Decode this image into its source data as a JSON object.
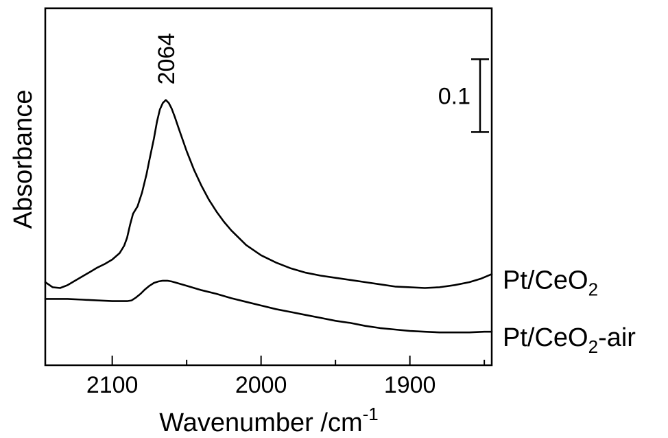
{
  "chart_data": {
    "type": "line",
    "title": "",
    "xlabel": "Wavenumber /cm",
    "xlabel_superscript": "-1",
    "ylabel": "Absorbance",
    "xlim": [
      2145,
      1845
    ],
    "x_reversed": true,
    "ylim": [
      -0.03,
      0.46
    ],
    "y_ticks_shown": false,
    "grid": false,
    "legend": "labels at right end of each curve",
    "x_ticks": [
      2100,
      2000,
      1900
    ],
    "x_minor_ticks": [
      2050,
      1950,
      1850
    ],
    "scale_bar": {
      "label": "0.1",
      "value": 0.1,
      "from": 0.29,
      "to": 0.39
    },
    "annotations": [
      {
        "text": "2064",
        "x": 2064,
        "y": 0.355,
        "rotation": -90
      }
    ],
    "series": [
      {
        "name": "Pt/CeO2",
        "label_main": "Pt/CeO",
        "label_sub": "2",
        "label_suffix": "",
        "points": [
          [
            2145,
            0.084
          ],
          [
            2140,
            0.077
          ],
          [
            2135,
            0.076
          ],
          [
            2130,
            0.08
          ],
          [
            2125,
            0.086
          ],
          [
            2120,
            0.092
          ],
          [
            2115,
            0.098
          ],
          [
            2110,
            0.104
          ],
          [
            2105,
            0.109
          ],
          [
            2100,
            0.115
          ],
          [
            2095,
            0.124
          ],
          [
            2092,
            0.134
          ],
          [
            2090,
            0.145
          ],
          [
            2088,
            0.163
          ],
          [
            2086,
            0.178
          ],
          [
            2083,
            0.188
          ],
          [
            2080,
            0.207
          ],
          [
            2077,
            0.232
          ],
          [
            2075,
            0.252
          ],
          [
            2072,
            0.281
          ],
          [
            2070,
            0.304
          ],
          [
            2068,
            0.321
          ],
          [
            2066,
            0.33
          ],
          [
            2064,
            0.334
          ],
          [
            2062,
            0.33
          ],
          [
            2060,
            0.322
          ],
          [
            2058,
            0.311
          ],
          [
            2055,
            0.293
          ],
          [
            2050,
            0.264
          ],
          [
            2045,
            0.238
          ],
          [
            2040,
            0.216
          ],
          [
            2035,
            0.197
          ],
          [
            2030,
            0.181
          ],
          [
            2025,
            0.167
          ],
          [
            2020,
            0.155
          ],
          [
            2010,
            0.135
          ],
          [
            2000,
            0.121
          ],
          [
            1990,
            0.111
          ],
          [
            1980,
            0.103
          ],
          [
            1970,
            0.097
          ],
          [
            1960,
            0.093
          ],
          [
            1950,
            0.09
          ],
          [
            1940,
            0.087
          ],
          [
            1930,
            0.084
          ],
          [
            1920,
            0.081
          ],
          [
            1910,
            0.078
          ],
          [
            1900,
            0.077
          ],
          [
            1890,
            0.076
          ],
          [
            1880,
            0.077
          ],
          [
            1870,
            0.08
          ],
          [
            1860,
            0.084
          ],
          [
            1852,
            0.089
          ],
          [
            1845,
            0.095
          ]
        ]
      },
      {
        "name": "Pt/CeO2-air",
        "label_main": "Pt/CeO",
        "label_sub": "2",
        "label_suffix": "-air",
        "points": [
          [
            2145,
            0.061
          ],
          [
            2130,
            0.061
          ],
          [
            2120,
            0.06
          ],
          [
            2110,
            0.059
          ],
          [
            2100,
            0.058
          ],
          [
            2095,
            0.058
          ],
          [
            2090,
            0.058
          ],
          [
            2087,
            0.059
          ],
          [
            2084,
            0.063
          ],
          [
            2081,
            0.068
          ],
          [
            2078,
            0.074
          ],
          [
            2075,
            0.079
          ],
          [
            2072,
            0.083
          ],
          [
            2069,
            0.085
          ],
          [
            2066,
            0.086
          ],
          [
            2063,
            0.086
          ],
          [
            2060,
            0.085
          ],
          [
            2055,
            0.082
          ],
          [
            2050,
            0.079
          ],
          [
            2045,
            0.076
          ],
          [
            2040,
            0.073
          ],
          [
            2030,
            0.068
          ],
          [
            2020,
            0.062
          ],
          [
            2010,
            0.057
          ],
          [
            2000,
            0.052
          ],
          [
            1990,
            0.047
          ],
          [
            1980,
            0.043
          ],
          [
            1970,
            0.039
          ],
          [
            1960,
            0.035
          ],
          [
            1950,
            0.031
          ],
          [
            1940,
            0.028
          ],
          [
            1930,
            0.024
          ],
          [
            1920,
            0.021
          ],
          [
            1910,
            0.019
          ],
          [
            1900,
            0.017
          ],
          [
            1890,
            0.016
          ],
          [
            1880,
            0.015
          ],
          [
            1870,
            0.015
          ],
          [
            1860,
            0.015
          ],
          [
            1850,
            0.016
          ],
          [
            1845,
            0.016
          ]
        ]
      }
    ]
  }
}
